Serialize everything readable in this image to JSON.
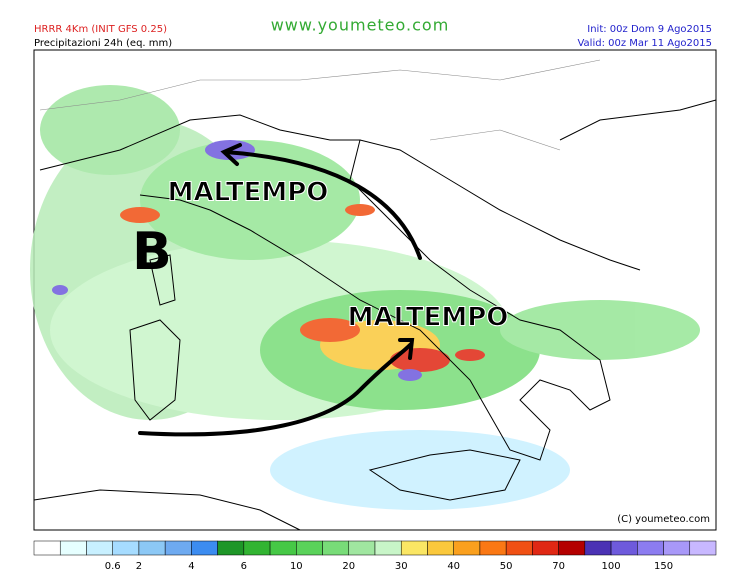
{
  "header": {
    "model": "HRRR 4Km (INIT GFS 0.25)",
    "product": "Precipitazioni 24h (eq. mm)",
    "site": "www.youmeteo.com",
    "init": "Init: 00z Dom 9  Ago2015",
    "valid": "Valid: 00z Mar  11 Ago2015"
  },
  "annotations": {
    "north": "MALTEMPO",
    "low": "B",
    "south": "MALTEMPO"
  },
  "copyright": "(C) youmeteo.com",
  "legend": {
    "colors": [
      "#ffffff",
      "#e6ffff",
      "#c8f0ff",
      "#a6dcff",
      "#8cc8f5",
      "#6eaaf0",
      "#3c8cf0",
      "#1e9628",
      "#32b432",
      "#46c846",
      "#5ad25a",
      "#78dc78",
      "#a0e6a0",
      "#c8f5c8",
      "#fae664",
      "#fac83c",
      "#faa01e",
      "#fa7814",
      "#f05014",
      "#e02814",
      "#b40000",
      "#4b32b4",
      "#6e5adc",
      "#8c7cf0",
      "#a898f8",
      "#c8b8ff"
    ],
    "labels": [
      0.6,
      2,
      4,
      6,
      10,
      20,
      30,
      40,
      50,
      70,
      100,
      150
    ]
  }
}
